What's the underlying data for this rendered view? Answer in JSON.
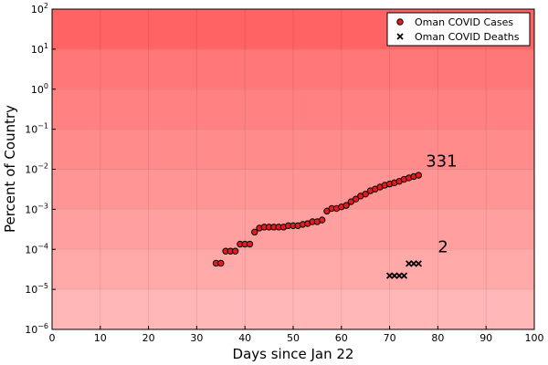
{
  "chart_data": {
    "type": "scatter",
    "xlabel": "Days since Jan 22",
    "ylabel": "Percent of Country",
    "xlim": [
      0,
      100
    ],
    "ylim": [
      1e-06,
      100
    ],
    "yscale": "log",
    "x_ticks": [
      0,
      10,
      20,
      30,
      40,
      50,
      60,
      70,
      80,
      90,
      100
    ],
    "y_ticks": [
      {
        "value": 1e-06,
        "base": "10",
        "exp": "−6"
      },
      {
        "value": 1e-05,
        "base": "10",
        "exp": "−5"
      },
      {
        "value": 0.0001,
        "base": "10",
        "exp": "−4"
      },
      {
        "value": 0.001,
        "base": "10",
        "exp": "−3"
      },
      {
        "value": 0.01,
        "base": "10",
        "exp": "−2"
      },
      {
        "value": 0.1,
        "base": "10",
        "exp": "−1"
      },
      {
        "value": 1,
        "base": "10",
        "exp": "0"
      },
      {
        "value": 10,
        "base": "10",
        "exp": "1"
      },
      {
        "value": 100,
        "base": "10",
        "exp": "2"
      }
    ],
    "grid": true,
    "legend_position": "top-right",
    "background_bands": [
      {
        "from": 1e-06,
        "to": 1e-05,
        "color": "#ffb7b7"
      },
      {
        "from": 1e-05,
        "to": 0.0001,
        "color": "#ffa9a9"
      },
      {
        "from": 0.0001,
        "to": 0.001,
        "color": "#ff9f9f"
      },
      {
        "from": 0.001,
        "to": 0.01,
        "color": "#ff9595"
      },
      {
        "from": 0.01,
        "to": 0.1,
        "color": "#ff8b8b"
      },
      {
        "from": 0.1,
        "to": 1,
        "color": "#ff8181"
      },
      {
        "from": 1,
        "to": 10,
        "color": "#ff7777"
      },
      {
        "from": 10,
        "to": 100,
        "color": "#ff6363"
      }
    ],
    "series": [
      {
        "name": "Oman COVID Cases",
        "marker": "circle",
        "color": "#e41a1c",
        "x": [
          34,
          35,
          36,
          37,
          38,
          39,
          40,
          41,
          42,
          43,
          44,
          45,
          46,
          47,
          48,
          49,
          50,
          51,
          52,
          53,
          54,
          55,
          56,
          57,
          58,
          59,
          60,
          61,
          62,
          63,
          64,
          65,
          66,
          67,
          68,
          69,
          70,
          71,
          72,
          73,
          74,
          75,
          76
        ],
        "y": [
          4.5e-05,
          4.5e-05,
          9e-05,
          9e-05,
          9e-05,
          0.000135,
          0.000135,
          0.000135,
          0.00027,
          0.00034,
          0.00036,
          0.00036,
          0.00036,
          0.00036,
          0.00036,
          0.00039,
          0.00039,
          0.00039,
          0.00042,
          0.00044,
          0.00049,
          0.00049,
          0.00054,
          0.0009,
          0.00105,
          0.00105,
          0.00115,
          0.00125,
          0.00155,
          0.0018,
          0.00215,
          0.0024,
          0.0029,
          0.0032,
          0.0036,
          0.004,
          0.0043,
          0.0046,
          0.005,
          0.0056,
          0.0061,
          0.0066,
          0.0071
        ]
      },
      {
        "name": "Oman COVID Deaths",
        "marker": "cross",
        "color": "#000000",
        "x": [
          70,
          71,
          72,
          73,
          74,
          75,
          76
        ],
        "y": [
          2.2e-05,
          2.2e-05,
          2.2e-05,
          2.2e-05,
          4.4e-05,
          4.4e-05,
          4.4e-05
        ]
      }
    ],
    "annotations": [
      {
        "text": "331",
        "x": 77.5,
        "y": 0.0118
      },
      {
        "text": "2",
        "x": 80,
        "y": 8.5e-05
      }
    ]
  }
}
